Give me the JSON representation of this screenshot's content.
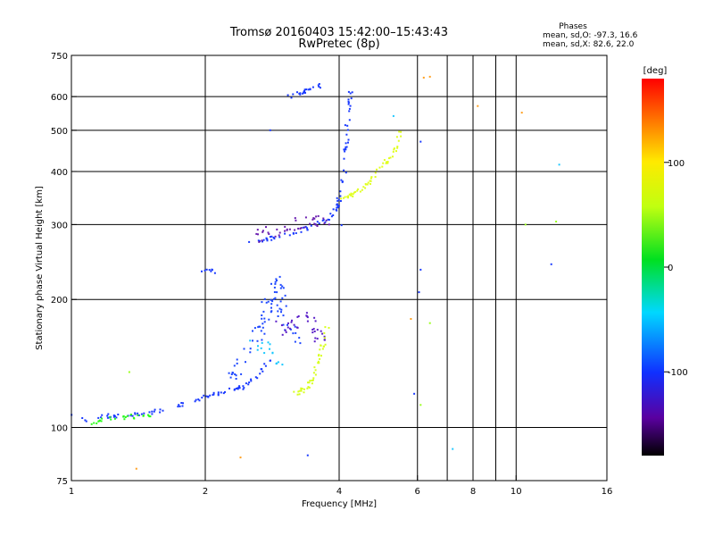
{
  "chart_data": {
    "type": "scatter",
    "title": "Tromsø 20160403 15:42:00–15:43:43",
    "subtitle": "RwPretec (8p)",
    "info": {
      "heading": "Phases",
      "line_o": "mean, sd,O: -97.3, 16.6",
      "line_x": "mean, sd,X:  82.6, 22.0"
    },
    "xlabel": "Frequency [MHz]",
    "ylabel": "Stationary phase Virtual Height [km]",
    "x_scale": "log",
    "y_scale": "log",
    "xlim": [
      1,
      16
    ],
    "ylim": [
      75,
      750
    ],
    "x_ticks": [
      1,
      2,
      4,
      6,
      8,
      10,
      16
    ],
    "x_tick_labels": [
      "1",
      "2",
      "4",
      "6",
      "8",
      "10",
      "16"
    ],
    "x_grid": [
      2,
      4,
      6,
      7,
      8,
      9,
      10
    ],
    "y_ticks": [
      75,
      100,
      200,
      300,
      400,
      500,
      600,
      750
    ],
    "y_tick_labels": [
      "75",
      "100",
      "200",
      "300",
      "400",
      "500",
      "600",
      "750"
    ],
    "y_grid": [
      100,
      200,
      300,
      400,
      500,
      600
    ],
    "grid": true,
    "colorbar": {
      "label": "[deg]",
      "range": [
        -180,
        180
      ],
      "ticks": [
        100,
        0,
        -100
      ],
      "tick_labels": [
        "100",
        "0",
        "-100"
      ]
    },
    "series": [
      {
        "kind": "trace",
        "color": "#1a3aff",
        "phase": -100,
        "count": 90,
        "points": [
          [
            1.0,
            108
          ],
          [
            1.05,
            104
          ],
          [
            1.15,
            106
          ],
          [
            1.3,
            107
          ],
          [
            1.5,
            108
          ],
          [
            1.7,
            112
          ],
          [
            1.9,
            116
          ],
          [
            2.0,
            118
          ],
          [
            2.2,
            121
          ],
          [
            2.4,
            124
          ],
          [
            2.6,
            130
          ],
          [
            2.8,
            145
          ]
        ]
      },
      {
        "kind": "trace",
        "color": "#2aff1a",
        "phase": 40,
        "count": 26,
        "points": [
          [
            1.12,
            103
          ],
          [
            1.18,
            104
          ],
          [
            1.25,
            105
          ],
          [
            1.35,
            106
          ],
          [
            1.5,
            107
          ]
        ]
      },
      {
        "kind": "cloud",
        "color": "#1e48ff",
        "phase": -95,
        "count": 80,
        "points": [
          [
            2.3,
            130
          ],
          [
            2.5,
            150
          ],
          [
            2.7,
            175
          ],
          [
            2.8,
            205
          ],
          [
            2.9,
            225
          ],
          [
            3.0,
            185
          ],
          [
            3.2,
            160
          ]
        ]
      },
      {
        "kind": "cloud",
        "color": "#5a1fc8",
        "phase": -130,
        "count": 35,
        "points": [
          [
            2.9,
            175
          ],
          [
            3.1,
            170
          ],
          [
            3.3,
            190
          ],
          [
            3.5,
            175
          ],
          [
            3.7,
            160
          ]
        ]
      },
      {
        "kind": "cloud",
        "color": "#18c8ff",
        "phase": -60,
        "count": 15,
        "points": [
          [
            2.6,
            160
          ],
          [
            2.8,
            150
          ],
          [
            3.0,
            140
          ]
        ]
      },
      {
        "kind": "trace",
        "color": "#d8ff20",
        "phase": 80,
        "count": 45,
        "points": [
          [
            3.2,
            120
          ],
          [
            3.4,
            124
          ],
          [
            3.5,
            130
          ],
          [
            3.6,
            145
          ],
          [
            3.7,
            160
          ],
          [
            3.8,
            180
          ]
        ]
      },
      {
        "kind": "trace",
        "color": "#1a3aff",
        "phase": -100,
        "count": 85,
        "points": [
          [
            2.5,
            270
          ],
          [
            2.8,
            278
          ],
          [
            3.1,
            285
          ],
          [
            3.4,
            295
          ],
          [
            3.7,
            305
          ],
          [
            3.9,
            320
          ],
          [
            4.0,
            345
          ],
          [
            4.1,
            395
          ],
          [
            4.15,
            460
          ],
          [
            4.2,
            560
          ],
          [
            4.25,
            640
          ]
        ]
      },
      {
        "kind": "cloud",
        "color": "#6a1fb0",
        "phase": -135,
        "count": 40,
        "points": [
          [
            2.6,
            280
          ],
          [
            2.9,
            290
          ],
          [
            3.2,
            300
          ],
          [
            3.5,
            305
          ],
          [
            3.8,
            300
          ]
        ]
      },
      {
        "kind": "trace",
        "color": "#e0ff20",
        "phase": 85,
        "count": 55,
        "points": [
          [
            4.0,
            340
          ],
          [
            4.2,
            350
          ],
          [
            4.4,
            360
          ],
          [
            4.6,
            370
          ],
          [
            4.8,
            390
          ],
          [
            5.0,
            410
          ],
          [
            5.2,
            430
          ],
          [
            5.4,
            460
          ],
          [
            5.5,
            500
          ]
        ]
      },
      {
        "kind": "trace",
        "color": "#1a3aff",
        "phase": -100,
        "count": 22,
        "points": [
          [
            3.1,
            600
          ],
          [
            3.3,
            615
          ],
          [
            3.5,
            630
          ],
          [
            3.7,
            645
          ]
        ]
      },
      {
        "kind": "trace",
        "color": "#1a3aff",
        "phase": -100,
        "count": 8,
        "points": [
          [
            1.95,
            232
          ],
          [
            2.05,
            234
          ],
          [
            2.15,
            233
          ]
        ]
      },
      {
        "kind": "sparse",
        "color": "#1a3aff",
        "phase": -100,
        "points": [
          [
            2.8,
            500
          ],
          [
            4.05,
            299
          ],
          [
            6.1,
            235
          ],
          [
            6.05,
            208
          ],
          [
            6.1,
            470
          ],
          [
            12.0,
            242
          ],
          [
            5.9,
            120
          ],
          [
            3.4,
            86
          ]
        ]
      },
      {
        "kind": "sparse",
        "color": "#ffa020",
        "phase": 140,
        "points": [
          [
            6.2,
            665
          ],
          [
            6.4,
            668
          ],
          [
            8.2,
            570
          ],
          [
            10.3,
            550
          ],
          [
            2.4,
            85
          ],
          [
            1.4,
            80
          ],
          [
            5.8,
            180
          ]
        ]
      },
      {
        "kind": "sparse",
        "color": "#9bff20",
        "phase": 60,
        "points": [
          [
            6.1,
            113
          ],
          [
            10.5,
            300
          ],
          [
            12.3,
            305
          ],
          [
            6.4,
            176
          ],
          [
            1.35,
            135
          ]
        ]
      },
      {
        "kind": "sparse",
        "color": "#20c8ff",
        "phase": -40,
        "points": [
          [
            7.2,
            89
          ],
          [
            12.5,
            415
          ],
          [
            5.3,
            540
          ]
        ]
      }
    ]
  }
}
